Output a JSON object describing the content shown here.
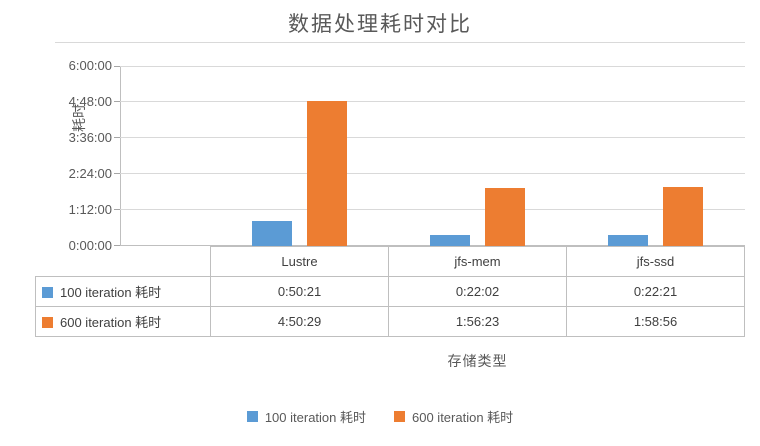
{
  "chart_data": {
    "type": "bar",
    "title": "数据处理耗时对比",
    "xlabel": "存储类型",
    "ylabel": "耗时",
    "categories": [
      "Lustre",
      "jfs-mem",
      "jfs-ssd"
    ],
    "series": [
      {
        "name": "100 iteration 耗时",
        "color": "#5B9BD5",
        "values": [
          "0:50:21",
          "0:22:02",
          "0:22:21"
        ]
      },
      {
        "name": "600 iteration 耗时",
        "color": "#ED7D31",
        "values": [
          "4:50:29",
          "1:56:23",
          "1:58:56"
        ]
      }
    ],
    "y_ticks": [
      "0:00:00",
      "1:12:00",
      "2:24:00",
      "3:36:00",
      "4:48:00",
      "6:00:00"
    ],
    "ylim_seconds": [
      0,
      21600
    ],
    "grid": true,
    "legend_position": "bottom",
    "has_data_table": true
  },
  "colors": {
    "series_blue": "#5B9BD5",
    "series_orange": "#ED7D31",
    "gridline": "#D9D9D9",
    "axis_line": "#BFBFBF",
    "table_border": "#BFBFBF",
    "table_text": "#404040",
    "label_text": "#595959",
    "background": "#FFFFFF"
  }
}
